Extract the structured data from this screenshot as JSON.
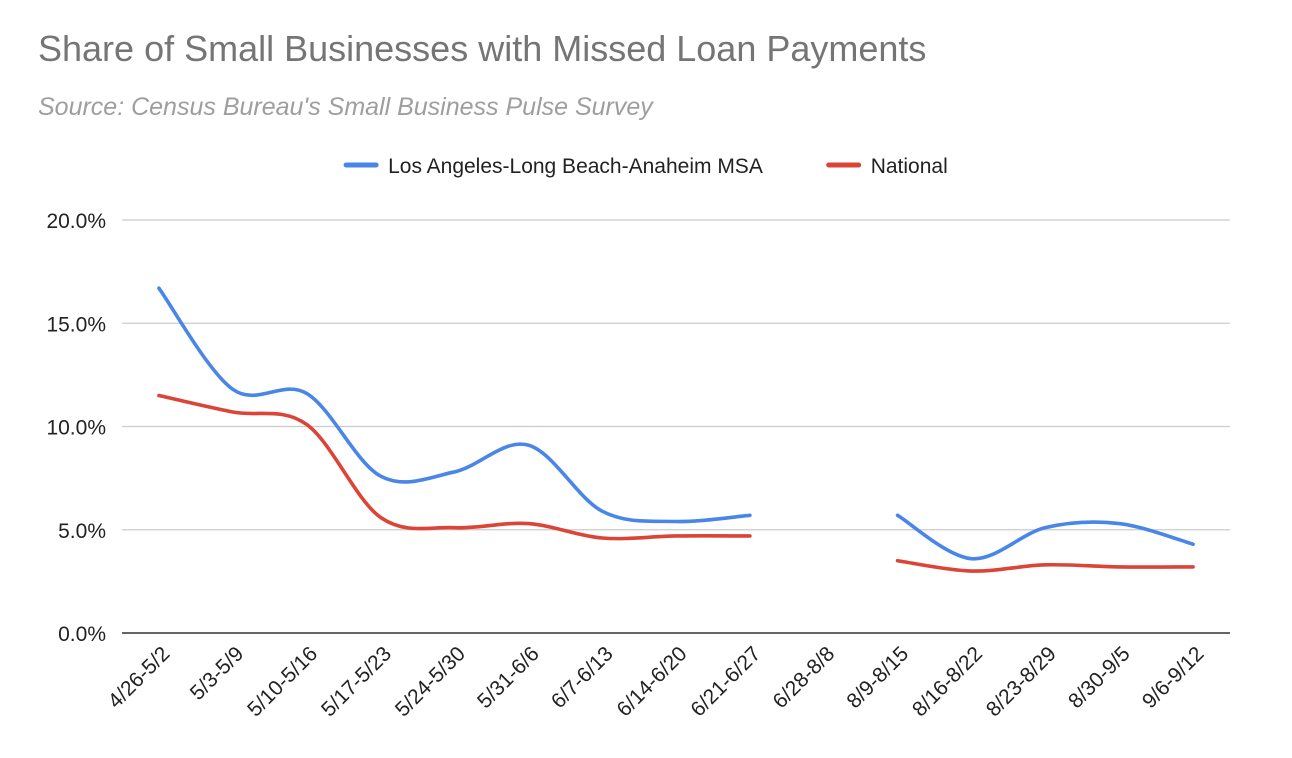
{
  "chart_data": {
    "type": "line",
    "title": "Share of Small Businesses with Missed Loan Payments",
    "subtitle": "Source: Census Bureau's Small Business Pulse Survey",
    "xlabel": "",
    "ylabel": "",
    "categories": [
      "4/26-5/2",
      "5/3-5/9",
      "5/10-5/16",
      "5/17-5/23",
      "5/24-5/30",
      "5/31-6/6",
      "6/7-6/13",
      "6/14-6/20",
      "6/21-6/27",
      "6/28-8/8",
      "8/9-8/15",
      "8/16-8/22",
      "8/23-8/29",
      "8/30-9/5",
      "9/6-9/12"
    ],
    "series": [
      {
        "name": "Los Angeles-Long Beach-Anaheim MSA",
        "color": "#4a86e8",
        "values": [
          16.7,
          11.8,
          11.6,
          7.6,
          7.8,
          9.1,
          5.9,
          5.4,
          5.7,
          null,
          5.7,
          3.6,
          5.1,
          5.3,
          4.3
        ]
      },
      {
        "name": "National",
        "color": "#db4437",
        "values": [
          11.5,
          10.7,
          10.1,
          5.6,
          5.1,
          5.3,
          4.6,
          4.7,
          4.7,
          null,
          3.5,
          3.0,
          3.3,
          3.2,
          3.2
        ]
      }
    ],
    "ylim": [
      0,
      20
    ],
    "yticks": [
      "0.0%",
      "5.0%",
      "10.0%",
      "15.0%",
      "20.0%"
    ],
    "grid": true,
    "legend": "top-center",
    "colors": {
      "title": "#757575",
      "subtitle": "#9e9e9e",
      "grid": "#cccccc",
      "axis": "#333333",
      "tick_text": "#222222"
    }
  }
}
